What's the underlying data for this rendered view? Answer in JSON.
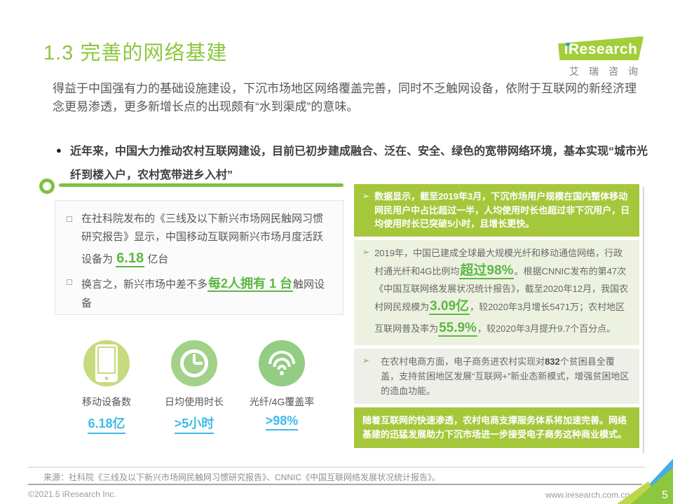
{
  "colors": {
    "title_green": "#8dc63f",
    "block_green": "#a5c73b",
    "highlight_green": "#5cb843",
    "value_cyan": "#3fb9e8",
    "corner_blue": "#45aee3"
  },
  "markers": {
    "dot": "●",
    "square": "□",
    "arrow": "➢"
  },
  "header": {
    "title": "1.3 完善的网络基建",
    "logo_text": "ıResearch",
    "logo_caption": "艾瑞咨询"
  },
  "intro": "得益于中国强有力的基础设施建设，下沉市场地区网络覆盖完善，同时不乏触网设备，依附于互联网的新经济理念更易渗透，更多新增长点的出现颇有“水到渠成”的意味。",
  "keypoint": "近年来，中国大力推动农村互联网建设，目前已初步建成融合、泛在、安全、绿色的宽带网络环境，基本实现“城市光纤到楼入户，农村宽带进乡入村”",
  "left_box": {
    "item1_pre": "在社科院发布的《三线及以下新兴市场网民触网习惯研究报告》显示，中国移动互联网新兴市场月度活跃设备为 ",
    "item1_highlight": "6.18",
    "item1_post": " 亿台",
    "item2_pre": "换言之，新兴市场中差不多",
    "item2_highlight": "每2人拥有 1 台",
    "item2_post": "触网设备"
  },
  "stats": [
    {
      "icon": "mobile-phone-icon",
      "label": "移动设备数",
      "value": "6.18亿"
    },
    {
      "icon": "clock-icon",
      "label": "日均使用时长",
      "value": ">5小时"
    },
    {
      "icon": "wifi-icon",
      "label": "光纤/4G覆盖率",
      "value": ">98%"
    }
  ],
  "right_panel": {
    "block1": "数据显示，截至2019年3月，下沉市场用户规模在国内整体移动网民用户中占比超过一半，人均使用时长也超过非下沉用户，日均使用时长已突破5小时，且增长更快。",
    "block2": {
      "s1": "2019年，中国已建成全球最大规模光纤和移动通信网络，行政村通光纤和4G比例均",
      "h1": "超过98%",
      "s2": "。根据CNNIC发布的第47次《中国互联网络发展状况统计报告》，截至2020年12月，我国农村网民规模为",
      "h2": "3.09亿",
      "s3": "，较2020年3月增长5471万；农村地区互联网普及率为",
      "h3": "55.9%",
      "s4": "，较2020年3月提升9.7个百分点。"
    },
    "block3": {
      "s1": "在农村电商方面，电子商务进农村实现对",
      "h1": "832",
      "s2": "个贫困县全覆盖，支持贫困地区发展“互联网+”新业态新模式，增强贫困地区的造血功能。"
    },
    "block4": "随着互联网的快速渗透，农村电商支撑服务体系将加速完善。网络基建的迅猛发展助力下沉市场进一步接受电子商务这种商业模式。"
  },
  "footer": {
    "source": "来源：社科院《三线及以下新兴市场网民触网习惯研究报告》、CNNIC《中国互联网络发展状况统计报告》。",
    "copyright": "©2021.5 iResearch Inc.",
    "url": "www.iresearch.com.cn",
    "page_number": "5"
  }
}
